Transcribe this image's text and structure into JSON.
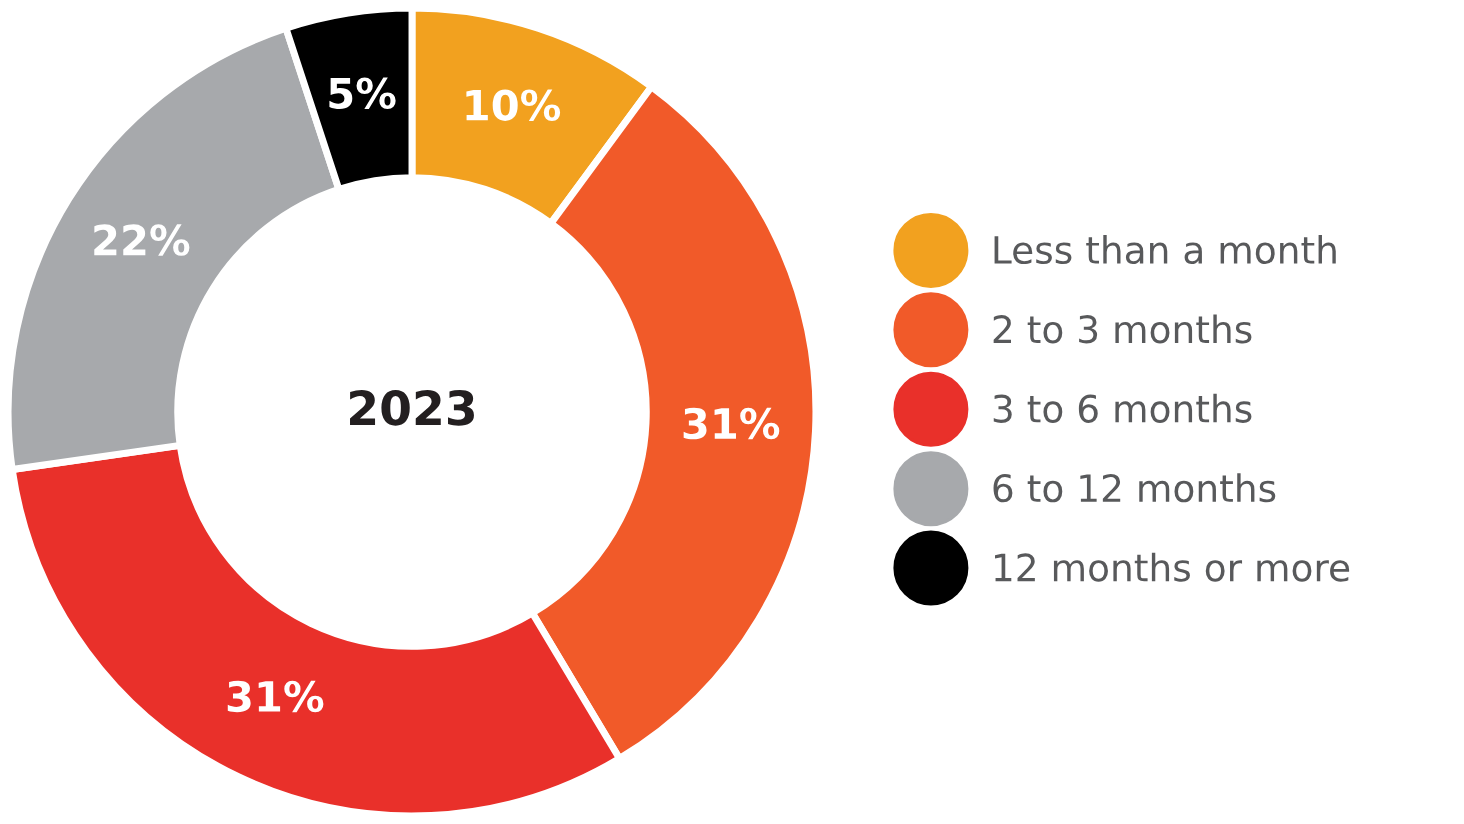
{
  "chart_data": {
    "type": "donut",
    "title": "2023",
    "categories": [
      "Less than a month",
      "2 to 3 months",
      "3 to 6 months",
      "6 to 12 months",
      "12 months or more"
    ],
    "values": [
      10,
      31,
      31,
      22,
      5
    ],
    "colors": [
      "#f2a11f",
      "#f15a29",
      "#e9302a",
      "#a7a9ac",
      "#000000"
    ],
    "value_labels": [
      "10%",
      "31%",
      "31%",
      "22%",
      "5%"
    ],
    "legend": "right"
  }
}
